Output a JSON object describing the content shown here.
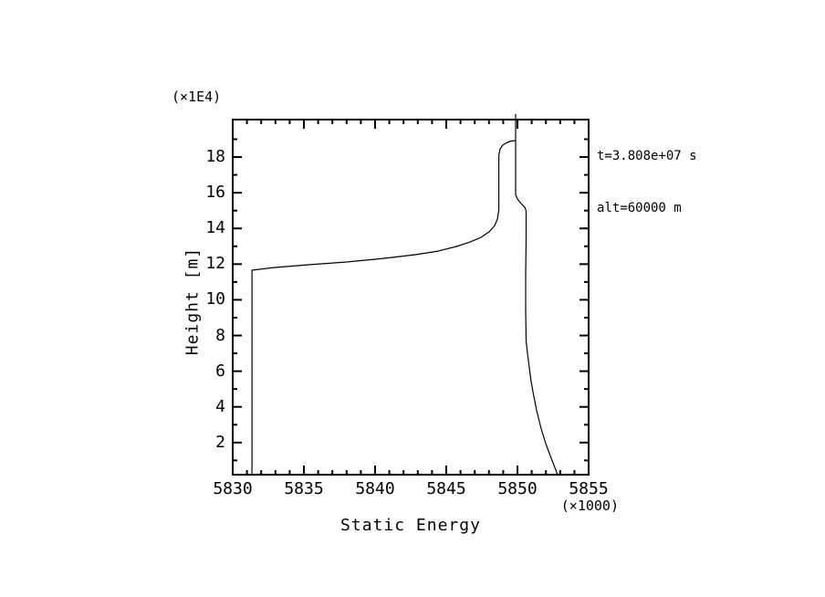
{
  "annotations": {
    "time": "t=3.808e+07 s",
    "altitude": "alt=60000 m"
  },
  "colors": {
    "background": "#ffffff",
    "ink": "#000000"
  },
  "chart_data": {
    "type": "line",
    "title": "",
    "xlabel": "Static Energy",
    "ylabel": "Height [m]",
    "x_scale_label": "(×1000)",
    "y_scale_label": "(×1E4)",
    "xlim": [
      5830,
      5855
    ],
    "ylim": [
      0.2,
      20.1
    ],
    "grid": false,
    "legend": "none",
    "x_major_ticks": [
      5830,
      5835,
      5840,
      5845,
      5850,
      5855
    ],
    "x_tick_labels": [
      "5830",
      "5835",
      "5840",
      "5845",
      "5850",
      "5855"
    ],
    "x_minor_tick_step": 1,
    "y_major_ticks": [
      2,
      4,
      6,
      8,
      10,
      12,
      14,
      16,
      18
    ],
    "y_tick_labels": [
      "2",
      "4",
      "6",
      "8",
      "10",
      "12",
      "14",
      "16",
      "18"
    ],
    "y_minor_tick_step": 1,
    "line_color": "#000000",
    "series": [
      {
        "name": "lower-static-energy-profile",
        "points": [
          [
            5831.35,
            0.2
          ],
          [
            5831.35,
            11.66
          ],
          [
            5832.88,
            11.81
          ],
          [
            5835.45,
            11.97
          ],
          [
            5838.01,
            12.12
          ],
          [
            5840.58,
            12.32
          ],
          [
            5842.82,
            12.53
          ],
          [
            5844.42,
            12.73
          ],
          [
            5845.71,
            12.99
          ],
          [
            5846.67,
            13.24
          ],
          [
            5847.44,
            13.5
          ],
          [
            5848.01,
            13.81
          ],
          [
            5848.4,
            14.16
          ],
          [
            5848.59,
            14.52
          ],
          [
            5848.69,
            15.03
          ],
          [
            5848.69,
            18.1
          ],
          [
            5848.78,
            18.46
          ],
          [
            5848.97,
            18.67
          ],
          [
            5849.29,
            18.82
          ],
          [
            5849.55,
            18.9
          ],
          [
            5849.84,
            18.92
          ]
        ]
      },
      {
        "name": "upper-static-energy-profile",
        "points": [
          [
            5849.87,
            20.41
          ],
          [
            5849.87,
            15.9
          ],
          [
            5850.0,
            15.65
          ],
          [
            5850.26,
            15.39
          ],
          [
            5850.51,
            15.19
          ],
          [
            5850.61,
            14.98
          ],
          [
            5850.61,
            13.4
          ],
          [
            5850.58,
            11.45
          ],
          [
            5850.58,
            9.41
          ],
          [
            5850.61,
            7.72
          ],
          [
            5850.71,
            6.95
          ],
          [
            5850.83,
            6.24
          ],
          [
            5850.96,
            5.42
          ],
          [
            5851.12,
            4.7
          ],
          [
            5851.35,
            3.78
          ],
          [
            5851.67,
            2.76
          ],
          [
            5851.99,
            1.94
          ],
          [
            5852.4,
            1.07
          ],
          [
            5852.82,
            0.2
          ]
        ]
      }
    ]
  }
}
